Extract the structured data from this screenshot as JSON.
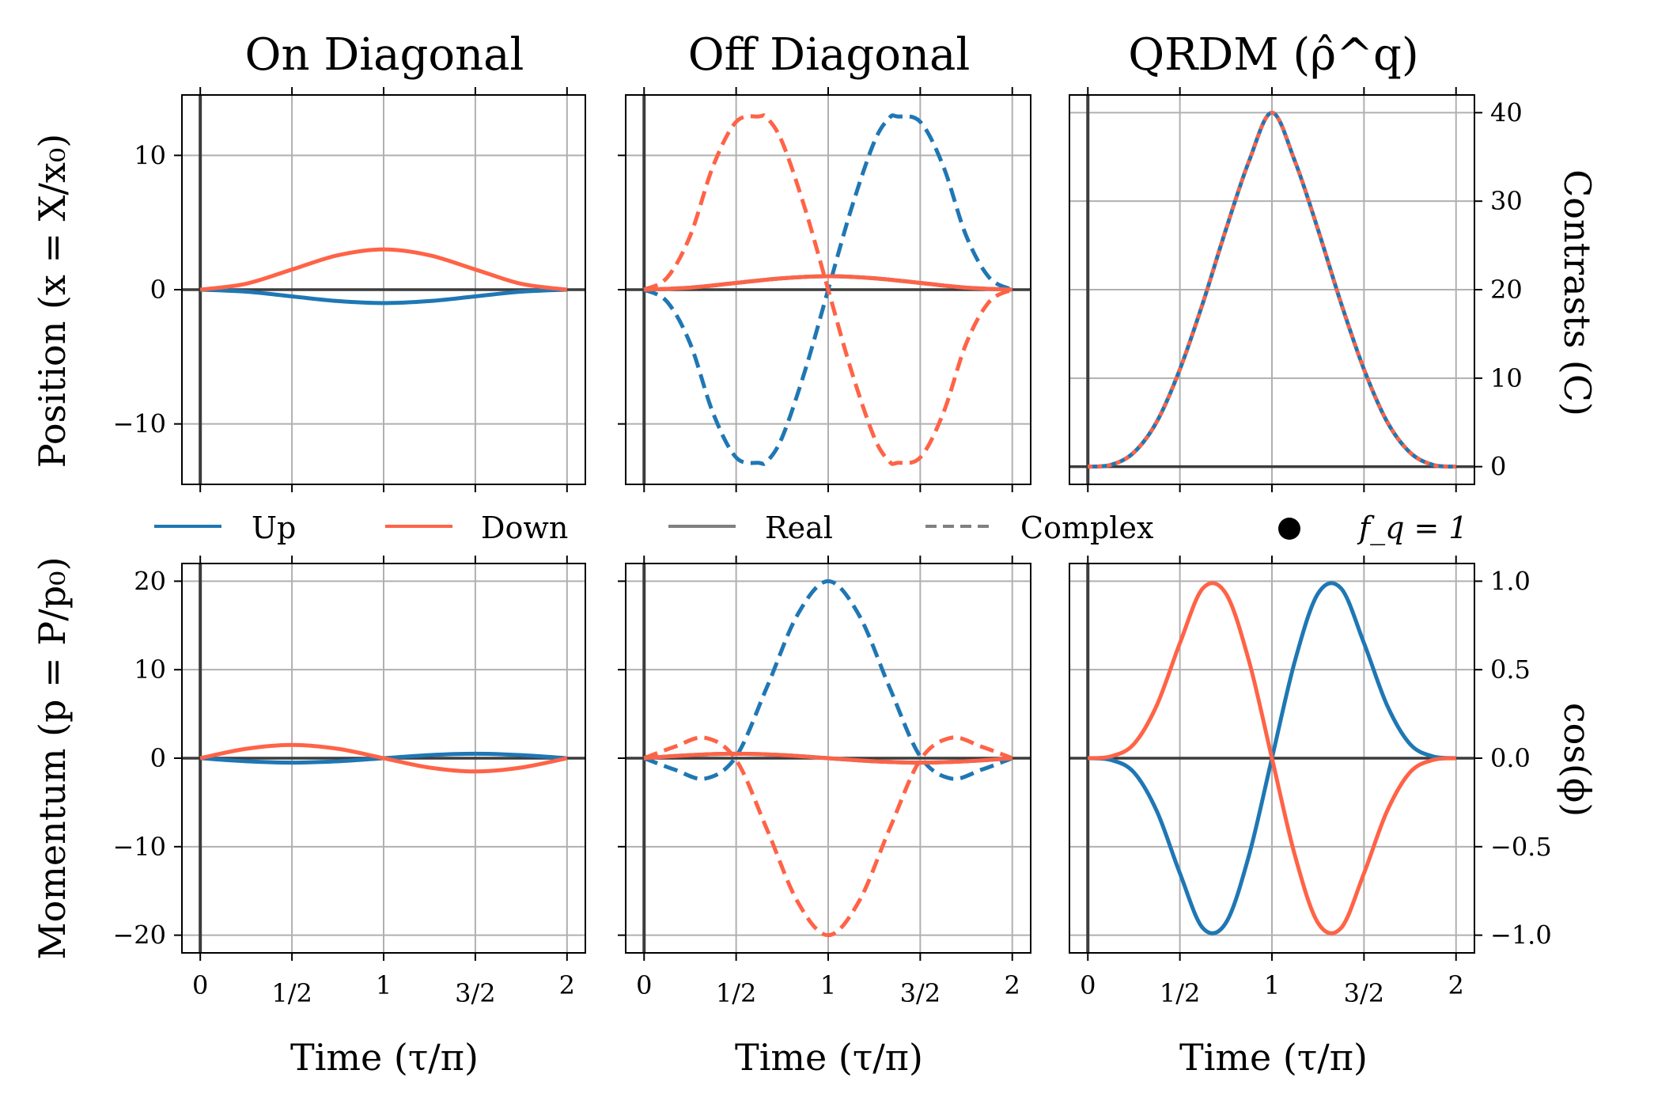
{
  "colors": {
    "up": "#1f77b4",
    "down": "#ff6347",
    "grid": "#b0b0b0",
    "zero": "#3c3c3c",
    "legend_gray": "#808080"
  },
  "titles": {
    "col1": "On Diagonal",
    "col2": "Off Diagonal",
    "col3": "QRDM (ρ̂^q)"
  },
  "labels": {
    "y_position": "Position (x = X/x₀)",
    "y_momentum": "Momentum (p = P/p₀)",
    "y_contrasts": "Contrasts (C)",
    "y_cosphi": "cos(ϕ)",
    "x_time": "Time (τ/π)"
  },
  "legend": {
    "up": "Up",
    "down": "Down",
    "real": "Real",
    "complex": "Complex",
    "fq": "f_q = 1"
  },
  "chart_data": [
    {
      "id": "pos-on",
      "type": "line",
      "xlim": [
        -0.1,
        2.1
      ],
      "ylim": [
        -14.5,
        14.5
      ],
      "x_ticks": [
        0,
        0.5,
        1,
        1.5,
        2
      ],
      "x_tick_labels": [
        "0",
        "1/2",
        "1",
        "3/2",
        "2"
      ],
      "y_ticks": [
        -10,
        0,
        10
      ],
      "y_tick_labels": [
        "−10",
        "0",
        "10"
      ],
      "series": [
        {
          "color": "up",
          "style": "solid",
          "x": [
            0,
            0.25,
            0.5,
            0.75,
            1,
            1.25,
            1.5,
            1.75,
            2
          ],
          "y": [
            0,
            -0.15,
            -0.5,
            -0.85,
            -1.0,
            -0.85,
            -0.5,
            -0.15,
            0
          ]
        },
        {
          "color": "down",
          "style": "solid",
          "x": [
            0,
            0.25,
            0.5,
            0.75,
            1,
            1.25,
            1.5,
            1.75,
            2
          ],
          "y": [
            0,
            0.44,
            1.5,
            2.56,
            3.0,
            2.56,
            1.5,
            0.44,
            0
          ]
        }
      ]
    },
    {
      "id": "pos-off",
      "type": "line",
      "xlim": [
        -0.1,
        2.1
      ],
      "ylim": [
        -14.5,
        14.5
      ],
      "x_ticks": [
        0,
        0.5,
        1,
        1.5,
        2
      ],
      "x_tick_labels": [
        "0",
        "1/2",
        "1",
        "3/2",
        "2"
      ],
      "y_ticks": [
        -10,
        0,
        10
      ],
      "y_tick_labels": [
        "",
        "",
        ""
      ],
      "series": [
        {
          "color": "up",
          "style": "dashed",
          "x": [
            0,
            0.125,
            0.25,
            0.375,
            0.5,
            0.625,
            0.667,
            0.75,
            0.875,
            1,
            1.125,
            1.25,
            1.333,
            1.375,
            1.5,
            1.625,
            1.75,
            1.875,
            2
          ],
          "y": [
            0,
            -0.9,
            -4.0,
            -9.2,
            -12.5,
            -12.9,
            -12.8,
            -11.0,
            -6.0,
            0,
            6.0,
            11.0,
            12.8,
            12.9,
            12.5,
            9.2,
            4.0,
            0.9,
            0
          ]
        },
        {
          "color": "down",
          "style": "dashed",
          "x": [
            0,
            0.125,
            0.25,
            0.375,
            0.5,
            0.625,
            0.667,
            0.75,
            0.875,
            1,
            1.125,
            1.25,
            1.333,
            1.375,
            1.5,
            1.625,
            1.75,
            1.875,
            2
          ],
          "y": [
            0,
            0.9,
            4.0,
            9.2,
            12.5,
            12.9,
            12.8,
            11.0,
            6.0,
            0,
            -6.0,
            -11.0,
            -12.8,
            -12.9,
            -12.5,
            -9.2,
            -4.0,
            -0.9,
            0
          ]
        },
        {
          "color": "up",
          "style": "solid",
          "x": [
            0,
            0.25,
            0.5,
            0.75,
            1,
            1.25,
            1.5,
            1.75,
            2
          ],
          "y": [
            0,
            0.15,
            0.5,
            0.85,
            1.0,
            0.85,
            0.5,
            0.15,
            0
          ]
        },
        {
          "color": "down",
          "style": "solid",
          "x": [
            0,
            0.25,
            0.5,
            0.75,
            1,
            1.25,
            1.5,
            1.75,
            2
          ],
          "y": [
            0,
            0.15,
            0.5,
            0.85,
            1.0,
            0.85,
            0.5,
            0.15,
            0
          ]
        }
      ]
    },
    {
      "id": "contrast",
      "type": "line",
      "xlim": [
        -0.1,
        2.1
      ],
      "ylim": [
        -2,
        42
      ],
      "x_ticks": [
        0,
        0.5,
        1,
        1.5,
        2
      ],
      "x_tick_labels": [
        "0",
        "1/2",
        "1",
        "3/2",
        "2"
      ],
      "y_ticks": [
        0,
        10,
        20,
        30,
        40
      ],
      "y_tick_labels": [
        "0",
        "10",
        "20",
        "30",
        "40"
      ],
      "series": [
        {
          "color": "up",
          "style": "solid",
          "x": [
            0,
            0.125,
            0.25,
            0.375,
            0.5,
            0.625,
            0.75,
            0.875,
            1,
            1.125,
            1.25,
            1.375,
            1.5,
            1.625,
            1.75,
            1.875,
            2
          ],
          "y": [
            0,
            0.2,
            1.6,
            5.1,
            11.0,
            18.5,
            26.8,
            34.5,
            40.0,
            34.5,
            26.8,
            18.5,
            11.0,
            5.1,
            1.6,
            0.2,
            0
          ]
        },
        {
          "color": "down",
          "style": "dotted",
          "x": [
            0,
            0.125,
            0.25,
            0.375,
            0.5,
            0.625,
            0.75,
            0.875,
            1,
            1.125,
            1.25,
            1.375,
            1.5,
            1.625,
            1.75,
            1.875,
            2
          ],
          "y": [
            0,
            0.2,
            1.6,
            5.1,
            11.0,
            18.5,
            26.8,
            34.5,
            40.0,
            34.5,
            26.8,
            18.5,
            11.0,
            5.1,
            1.6,
            0.2,
            0
          ]
        }
      ]
    },
    {
      "id": "mom-on",
      "type": "line",
      "xlim": [
        -0.1,
        2.1
      ],
      "ylim": [
        -22,
        22
      ],
      "x_ticks": [
        0,
        0.5,
        1,
        1.5,
        2
      ],
      "x_tick_labels": [
        "0",
        "1/2",
        "1",
        "3/2",
        "2"
      ],
      "y_ticks": [
        -20,
        -10,
        0,
        10,
        20
      ],
      "y_tick_labels": [
        "−20",
        "−10",
        "0",
        "10",
        "20"
      ],
      "series": [
        {
          "color": "up",
          "style": "solid",
          "x": [
            0,
            0.25,
            0.5,
            0.75,
            1,
            1.25,
            1.5,
            1.75,
            2
          ],
          "y": [
            0,
            -0.35,
            -0.5,
            -0.35,
            0,
            0.35,
            0.5,
            0.35,
            0
          ]
        },
        {
          "color": "down",
          "style": "solid",
          "x": [
            0,
            0.25,
            0.5,
            0.75,
            1,
            1.25,
            1.5,
            1.75,
            2
          ],
          "y": [
            0,
            1.06,
            1.5,
            1.06,
            0,
            -1.06,
            -1.5,
            -1.06,
            0
          ]
        }
      ]
    },
    {
      "id": "mom-off",
      "type": "line",
      "xlim": [
        -0.1,
        2.1
      ],
      "ylim": [
        -22,
        22
      ],
      "x_ticks": [
        0,
        0.5,
        1,
        1.5,
        2
      ],
      "x_tick_labels": [
        "0",
        "1/2",
        "1",
        "3/2",
        "2"
      ],
      "y_ticks": [
        -20,
        -10,
        0,
        10,
        20
      ],
      "y_tick_labels": [
        "",
        "",
        "",
        "",
        ""
      ],
      "series": [
        {
          "color": "up",
          "style": "dashed",
          "x": [
            0,
            0.1667,
            0.3333,
            0.5,
            0.6667,
            0.8333,
            1,
            1.1667,
            1.3333,
            1.5,
            1.6667,
            1.8333,
            2
          ],
          "y": [
            0,
            -1.3,
            -2.3,
            0.2,
            8.0,
            16.2,
            20.0,
            16.2,
            8.0,
            0.2,
            -2.3,
            -1.3,
            0
          ]
        },
        {
          "color": "down",
          "style": "dashed",
          "x": [
            0,
            0.1667,
            0.3333,
            0.5,
            0.6667,
            0.8333,
            1,
            1.1667,
            1.3333,
            1.5,
            1.6667,
            1.8333,
            2
          ],
          "y": [
            0,
            1.3,
            2.3,
            -0.2,
            -8.0,
            -16.2,
            -20.0,
            -16.2,
            -8.0,
            -0.2,
            2.3,
            1.3,
            0
          ]
        },
        {
          "color": "up",
          "style": "solid",
          "x": [
            0,
            0.25,
            0.5,
            0.75,
            1,
            1.25,
            1.5,
            1.75,
            2
          ],
          "y": [
            0,
            0.35,
            0.5,
            0.35,
            0,
            -0.35,
            -0.5,
            -0.35,
            0
          ]
        },
        {
          "color": "down",
          "style": "solid",
          "x": [
            0,
            0.25,
            0.5,
            0.75,
            1,
            1.25,
            1.5,
            1.75,
            2
          ],
          "y": [
            0,
            0.35,
            0.5,
            0.35,
            0,
            -0.35,
            -0.5,
            -0.35,
            0
          ]
        }
      ]
    },
    {
      "id": "cosphi",
      "type": "line",
      "xlim": [
        -0.1,
        2.1
      ],
      "ylim": [
        -1.1,
        1.1
      ],
      "x_ticks": [
        0,
        0.5,
        1,
        1.5,
        2
      ],
      "x_tick_labels": [
        "0",
        "1/2",
        "1",
        "3/2",
        "2"
      ],
      "y_ticks": [
        -1.0,
        -0.5,
        0.0,
        0.5,
        1.0
      ],
      "y_tick_labels": [
        "−1.0",
        "−0.5",
        "0.0",
        "0.5",
        "1.0"
      ],
      "series": [
        {
          "color": "up",
          "style": "solid",
          "x": [
            0,
            0.125,
            0.25,
            0.375,
            0.5,
            0.625,
            0.75,
            0.875,
            1,
            1.125,
            1.25,
            1.375,
            1.5,
            1.625,
            1.75,
            1.875,
            2
          ],
          "y": [
            0,
            -0.01,
            -0.08,
            -0.3,
            -0.65,
            -0.96,
            -0.93,
            -0.55,
            0,
            0.55,
            0.93,
            0.96,
            0.65,
            0.3,
            0.08,
            0.01,
            0
          ]
        },
        {
          "color": "down",
          "style": "solid",
          "x": [
            0,
            0.125,
            0.25,
            0.375,
            0.5,
            0.625,
            0.75,
            0.875,
            1,
            1.125,
            1.25,
            1.375,
            1.5,
            1.625,
            1.75,
            1.875,
            2
          ],
          "y": [
            0,
            0.01,
            0.08,
            0.3,
            0.65,
            0.96,
            0.93,
            0.55,
            0,
            -0.55,
            -0.93,
            -0.96,
            -0.65,
            -0.3,
            -0.08,
            -0.01,
            0
          ]
        }
      ]
    }
  ]
}
